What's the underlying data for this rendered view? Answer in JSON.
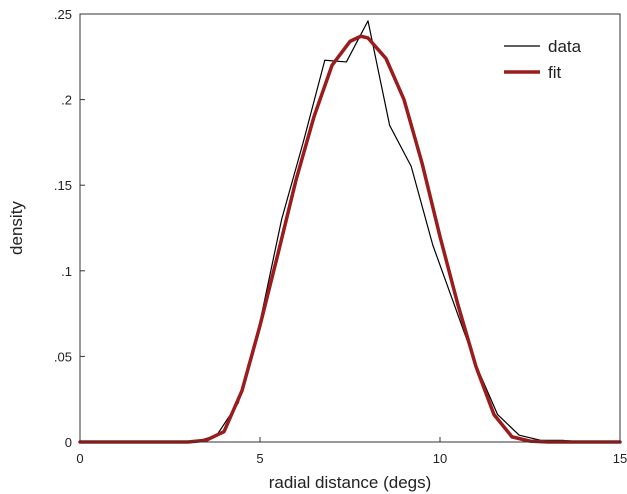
{
  "chart_data": {
    "type": "line",
    "title": "",
    "xlabel": "radial distance (degs)",
    "ylabel": "density",
    "xlim": [
      0,
      15
    ],
    "ylim": [
      0,
      0.25
    ],
    "x_ticks": [
      0,
      5,
      10,
      15
    ],
    "x_tick_labels": [
      "0",
      "5",
      "10",
      "15"
    ],
    "y_ticks": [
      0,
      0.05,
      0.1,
      0.15,
      0.2,
      0.25
    ],
    "y_tick_labels": [
      "0",
      ".05",
      ".1",
      ".15",
      ".2",
      ".25"
    ],
    "grid": false,
    "legend_position": "top-right",
    "series": [
      {
        "name": "data",
        "color": "#000000",
        "x": [
          0,
          3.2,
          3.8,
          4.4,
          5.0,
          5.6,
          6.2,
          6.8,
          7.4,
          8.0,
          8.6,
          9.2,
          9.8,
          10.4,
          11.0,
          11.6,
          12.2,
          12.8,
          13.4,
          14.0,
          15.0
        ],
        "y": [
          0,
          0,
          0.004,
          0.023,
          0.07,
          0.13,
          0.175,
          0.223,
          0.222,
          0.246,
          0.185,
          0.161,
          0.115,
          0.08,
          0.045,
          0.016,
          0.004,
          0.001,
          0.001,
          0,
          0
        ]
      },
      {
        "name": "fit",
        "color": "#9b1c1c",
        "x": [
          0,
          2.5,
          3.0,
          3.5,
          4.0,
          4.5,
          5.0,
          5.5,
          6.0,
          6.5,
          7.0,
          7.5,
          7.8,
          8.0,
          8.5,
          9.0,
          9.5,
          10.0,
          10.5,
          11.0,
          11.5,
          12.0,
          12.5,
          13.0,
          15.0
        ],
        "y": [
          0,
          0,
          0,
          0.001,
          0.006,
          0.03,
          0.068,
          0.11,
          0.153,
          0.19,
          0.22,
          0.234,
          0.237,
          0.236,
          0.224,
          0.2,
          0.163,
          0.12,
          0.08,
          0.044,
          0.016,
          0.003,
          0.0005,
          0,
          0
        ]
      }
    ]
  }
}
